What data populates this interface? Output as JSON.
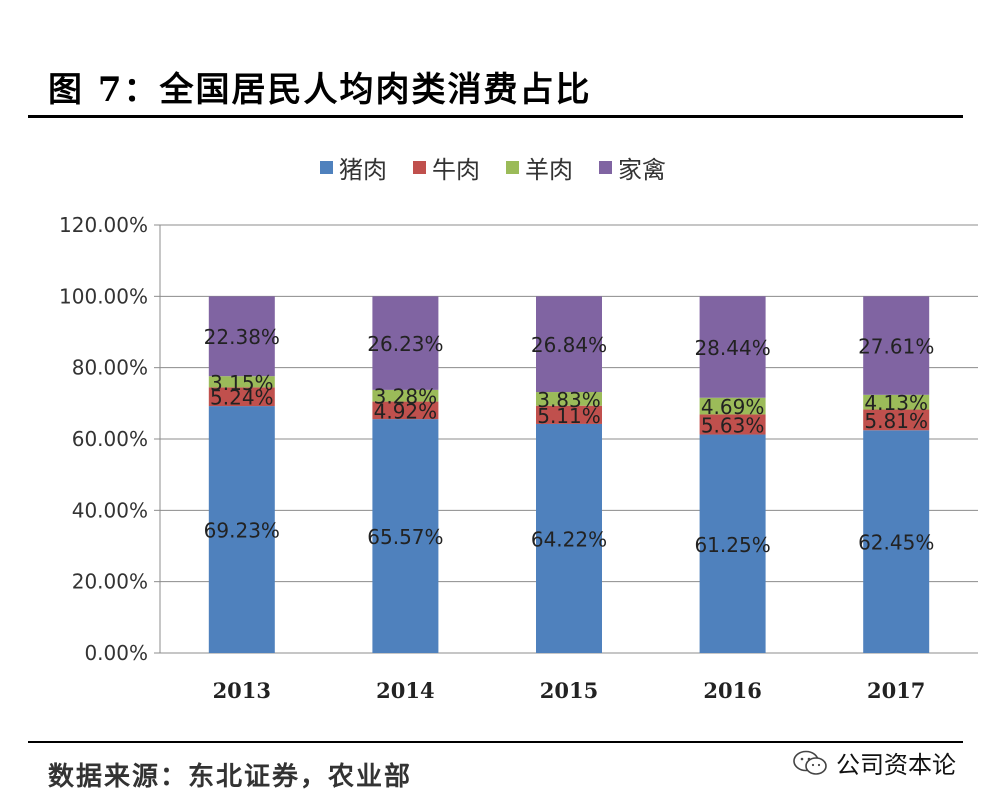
{
  "header": {
    "title": "图 7：全国居民人均肉类消费占比"
  },
  "footer": {
    "source": "数据来源：东北证券，农业部",
    "watermark": "公司资本论"
  },
  "chart_data": {
    "type": "bar",
    "stacked": true,
    "categories": [
      "2013",
      "2014",
      "2015",
      "2016",
      "2017"
    ],
    "series": [
      {
        "name": "猪肉",
        "color": "#4F81BD",
        "values": [
          69.23,
          65.57,
          64.22,
          61.25,
          62.45
        ],
        "labels": [
          "69.23%",
          "65.57%",
          "64.22%",
          "61.25%",
          "62.45%"
        ]
      },
      {
        "name": "牛肉",
        "color": "#C0504D",
        "values": [
          5.24,
          4.92,
          5.11,
          5.63,
          5.81
        ],
        "labels": [
          "5.24%",
          "4.92%",
          "5.11%",
          "5.63%",
          "5.81%"
        ]
      },
      {
        "name": "羊肉",
        "color": "#9BBB59",
        "values": [
          3.15,
          3.28,
          3.83,
          4.69,
          4.13
        ],
        "labels": [
          "3.15%",
          "3.28%",
          "3.83%",
          "4.69%",
          "4.13%"
        ]
      },
      {
        "name": "家禽",
        "color": "#8064A2",
        "values": [
          22.38,
          26.23,
          26.84,
          28.44,
          27.61
        ],
        "labels": [
          "22.38%",
          "26.23%",
          "26.84%",
          "28.44%",
          "27.61%"
        ]
      }
    ],
    "ylim": [
      0,
      120
    ],
    "yticks": [
      "0.00%",
      "20.00%",
      "40.00%",
      "60.00%",
      "80.00%",
      "100.00%",
      "120.00%"
    ],
    "ytick_values": [
      0,
      20,
      40,
      60,
      80,
      100,
      120
    ],
    "grid": true,
    "legend_position": "top"
  }
}
